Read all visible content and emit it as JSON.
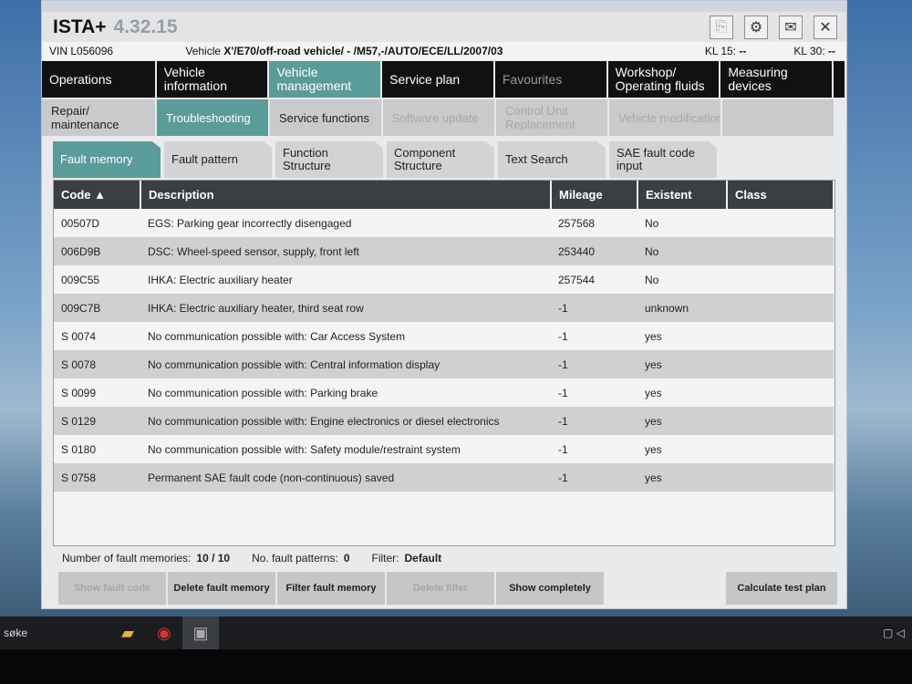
{
  "app": {
    "title": "ISTA+",
    "version": "4.32.15"
  },
  "vehicle": {
    "vin_label": "VIN",
    "vin": "L056096",
    "vehicle_label": "Vehicle",
    "vehicle": "X'/E70/off-road vehicle/ - /M57,-/AUTO/ECE/LL/2007/03",
    "kl15_label": "KL 15:",
    "kl15": "--",
    "kl30_label": "KL 30:",
    "kl30": "--"
  },
  "nav": [
    "Operations",
    "Vehicle information",
    "Vehicle management",
    "Service plan",
    "Favourites",
    "Workshop/ Operating fluids",
    "Measuring devices"
  ],
  "subnav": [
    "Repair/ maintenance",
    "Troubleshooting",
    "Service functions",
    "Software update",
    "Control Unit Replacement",
    "Vehicle modification"
  ],
  "tabs": [
    "Fault memory",
    "Fault pattern",
    "Function Structure",
    "Component Structure",
    "Text Search",
    "SAE fault code input"
  ],
  "table": {
    "headers": [
      "Code ▲",
      "Description",
      "Mileage",
      "Existent",
      "Class"
    ],
    "rows": [
      [
        "00507D",
        "EGS: Parking gear incorrectly disengaged",
        "257568",
        "No",
        ""
      ],
      [
        "006D9B",
        "DSC: Wheel-speed sensor, supply, front left",
        "253440",
        "No",
        ""
      ],
      [
        "009C55",
        "IHKA: Electric auxiliary heater",
        "257544",
        "No",
        ""
      ],
      [
        "009C7B",
        "IHKA: Electric auxiliary heater, third seat row",
        "-1",
        "unknown",
        ""
      ],
      [
        "S 0074",
        "No communication possible with: Car Access System",
        "-1",
        "yes",
        ""
      ],
      [
        "S 0078",
        "No communication possible with: Central information display",
        "-1",
        "yes",
        ""
      ],
      [
        "S 0099",
        "No communication possible with: Parking brake",
        "-1",
        "yes",
        ""
      ],
      [
        "S 0129",
        "No communication possible with: Engine electronics or diesel electronics",
        "-1",
        "yes",
        ""
      ],
      [
        "S 0180",
        "No communication possible with: Safety module/restraint system",
        "-1",
        "yes",
        ""
      ],
      [
        "S 0758",
        "Permanent SAE fault code (non-continuous) saved",
        "-1",
        "yes",
        ""
      ]
    ]
  },
  "status": {
    "count_label": "Number of fault memories:",
    "count": "10 / 10",
    "patterns_label": "No. fault patterns:",
    "patterns": "0",
    "filter_label": "Filter:",
    "filter": "Default"
  },
  "buttons": [
    "Show fault code",
    "Delete fault memory",
    "Filter fault memory",
    "Delete filter",
    "Show completely",
    "Calculate test plan"
  ],
  "taskbar": {
    "search": "søke"
  },
  "colors": {
    "accent": "#5a9c9a",
    "nav": "#111111"
  }
}
